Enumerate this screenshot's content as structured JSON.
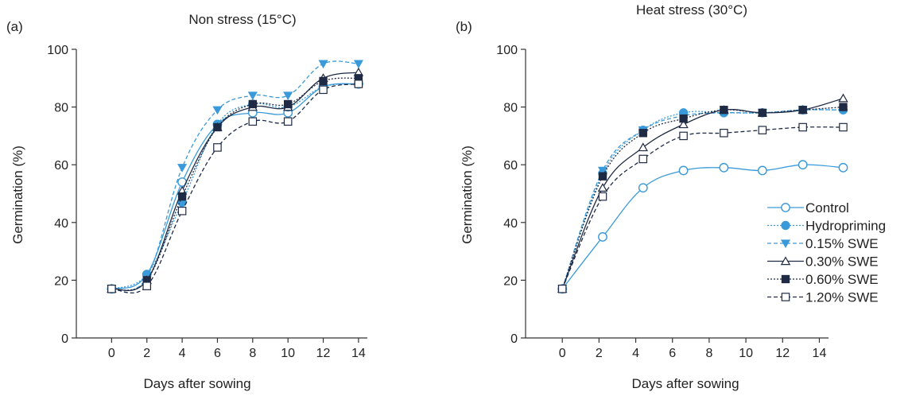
{
  "chart_data": [
    {
      "type": "line",
      "panel_label": "(a)",
      "title": "Non stress (15°C)",
      "xlabel": "Days after sowing",
      "ylabel": "Germination (%)",
      "x_ticks": [
        "0",
        "2",
        "4",
        "6",
        "8",
        "10",
        "12",
        "14"
      ],
      "y_ticks": [
        "0",
        "20",
        "40",
        "60",
        "80",
        "100"
      ],
      "xlim": [
        -2,
        14.5
      ],
      "ylim": [
        0,
        100
      ],
      "grid": false,
      "x": [
        0,
        2,
        4,
        6,
        8,
        10,
        12,
        14
      ],
      "series": [
        {
          "name": "Control",
          "values": [
            17,
            22,
            54,
            74,
            78,
            78,
            87,
            88
          ]
        },
        {
          "name": "Hydropriming",
          "values": [
            17,
            22,
            47,
            74,
            81,
            80,
            87,
            88
          ]
        },
        {
          "name": "0.15% SWE",
          "values": [
            17,
            21,
            59,
            79,
            84,
            84,
            95,
            95
          ]
        },
        {
          "name": "0.30% SWE",
          "values": [
            17,
            20,
            51,
            73,
            80,
            80,
            90,
            92
          ]
        },
        {
          "name": "0.60% SWE",
          "values": [
            17,
            20,
            49,
            73,
            81,
            81,
            89,
            90
          ]
        },
        {
          "name": "1.20% SWE",
          "values": [
            17,
            18,
            44,
            66,
            75,
            75,
            86,
            88
          ]
        }
      ]
    },
    {
      "type": "line",
      "panel_label": "(b)",
      "title": "Heat stress (30°C)",
      "xlabel": "Days after sowing",
      "ylabel": "Germination (%)",
      "x_ticks": [
        "0",
        "2",
        "4",
        "6",
        "8",
        "10",
        "12",
        "14"
      ],
      "y_ticks": [
        "0",
        "20",
        "40",
        "60",
        "80",
        "100"
      ],
      "xlim": [
        -2,
        14.5
      ],
      "ylim": [
        0,
        100
      ],
      "grid": false,
      "legend_position": "right",
      "x": [
        0,
        2.2,
        4.4,
        6.6,
        8.8,
        10.9,
        13.1,
        15.3
      ],
      "series": [
        {
          "name": "Control",
          "values": [
            17,
            35,
            52,
            58,
            59,
            58,
            60,
            59
          ]
        },
        {
          "name": "Hydropriming",
          "values": [
            17,
            57,
            72,
            78,
            78,
            78,
            79,
            79
          ]
        },
        {
          "name": "0.15% SWE",
          "values": [
            17,
            58,
            72,
            77,
            78,
            78,
            79,
            79
          ]
        },
        {
          "name": "0.30% SWE",
          "values": [
            17,
            52,
            66,
            74,
            79,
            78,
            79,
            83
          ]
        },
        {
          "name": "0.60% SWE",
          "values": [
            17,
            56,
            71,
            76,
            79,
            78,
            79,
            80
          ]
        },
        {
          "name": "1.20% SWE",
          "values": [
            17,
            49,
            62,
            70,
            71,
            72,
            73,
            73
          ]
        }
      ]
    }
  ],
  "series_styles": {
    "Control": {
      "color": "#3a9ad9",
      "dash": "none",
      "marker": "circle-open"
    },
    "Hydropriming": {
      "color": "#3a9ad9",
      "dash": "2,2",
      "marker": "circle-filled"
    },
    "0.15% SWE": {
      "color": "#3a9ad9",
      "dash": "5,3",
      "marker": "triangle-down-filled"
    },
    "0.30% SWE": {
      "color": "#1f2a44",
      "dash": "none",
      "marker": "triangle-up-open"
    },
    "0.60% SWE": {
      "color": "#1f2a44",
      "dash": "2,2",
      "marker": "square-filled"
    },
    "1.20% SWE": {
      "color": "#1f2a44",
      "dash": "5,3",
      "marker": "square-open"
    }
  }
}
